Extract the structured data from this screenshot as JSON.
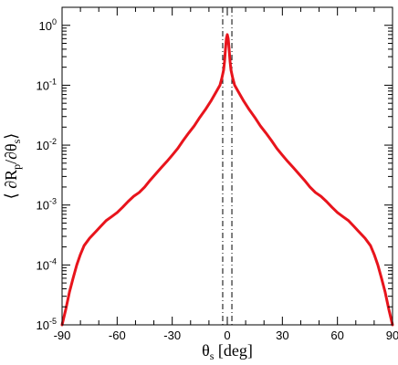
{
  "chart_data": {
    "type": "line",
    "title": "",
    "xlabel": {
      "main": "θ",
      "sub": "s",
      "rest": " [deg]"
    },
    "ylabel": {
      "parts": [
        "⟨ ∂R",
        "p",
        "/∂θ",
        "s",
        "⟩"
      ]
    },
    "xlim": [
      -90,
      90
    ],
    "ylim": [
      1e-05,
      2
    ],
    "yscale": "log",
    "grid": false,
    "legend": "none",
    "xticks": [
      {
        "value": -90,
        "label": "-90"
      },
      {
        "value": -60,
        "label": "-60"
      },
      {
        "value": -30,
        "label": "-30"
      },
      {
        "value": 0,
        "label": "0"
      },
      {
        "value": 30,
        "label": "30"
      },
      {
        "value": 60,
        "label": "60"
      },
      {
        "value": 90,
        "label": "90"
      }
    ],
    "yticks": [
      {
        "value": 1e-05,
        "base": "10",
        "exp": "-5"
      },
      {
        "value": 0.0001,
        "base": "10",
        "exp": "-4"
      },
      {
        "value": 0.001,
        "base": "10",
        "exp": "-3"
      },
      {
        "value": 0.01,
        "base": "10",
        "exp": "-2"
      },
      {
        "value": 0.1,
        "base": "10",
        "exp": "-1"
      },
      {
        "value": 1,
        "base": "10",
        "exp": "0"
      }
    ],
    "series": [
      {
        "color": "#e8141c",
        "style": "solid",
        "x": [
          -90,
          -88,
          -86,
          -84,
          -82,
          -80,
          -78,
          -75,
          -72,
          -69,
          -66,
          -63,
          -60,
          -57,
          -54,
          -51,
          -48,
          -45,
          -42,
          -39,
          -36,
          -33,
          -30,
          -27,
          -24,
          -21,
          -18,
          -15,
          -12,
          -9,
          -6,
          -4,
          -3,
          -2,
          -1.5,
          -1,
          -0.5,
          0,
          0.5,
          1,
          1.5,
          2,
          3,
          4,
          6,
          9,
          12,
          15,
          18,
          21,
          24,
          27,
          30,
          33,
          36,
          39,
          42,
          45,
          48,
          51,
          54,
          57,
          60,
          63,
          66,
          69,
          72,
          75,
          78,
          80,
          82,
          84,
          86,
          88,
          90
        ],
        "y": [
          1e-05,
          1.8e-05,
          3.5e-05,
          6e-05,
          0.0001,
          0.00015,
          0.00021,
          0.00028,
          0.00035,
          0.00044,
          0.00055,
          0.00064,
          0.00075,
          0.00092,
          0.00115,
          0.0014,
          0.00162,
          0.002,
          0.0026,
          0.0033,
          0.0042,
          0.0053,
          0.0068,
          0.0088,
          0.012,
          0.016,
          0.021,
          0.029,
          0.039,
          0.054,
          0.078,
          0.1,
          0.13,
          0.18,
          0.25,
          0.4,
          0.6,
          0.7,
          0.6,
          0.4,
          0.25,
          0.18,
          0.13,
          0.1,
          0.078,
          0.054,
          0.039,
          0.029,
          0.021,
          0.016,
          0.012,
          0.0088,
          0.0068,
          0.0053,
          0.0042,
          0.0033,
          0.0026,
          0.002,
          0.00162,
          0.0014,
          0.00115,
          0.00092,
          0.00075,
          0.00064,
          0.00055,
          0.00044,
          0.00035,
          0.00028,
          0.00021,
          0.00015,
          0.0001,
          6e-05,
          3.5e-05,
          1.8e-05,
          1e-05
        ]
      }
    ],
    "reference_lines": [
      {
        "x": -2.5,
        "style": "dash-dot"
      },
      {
        "x": 2.5,
        "style": "dash-dot"
      }
    ]
  }
}
